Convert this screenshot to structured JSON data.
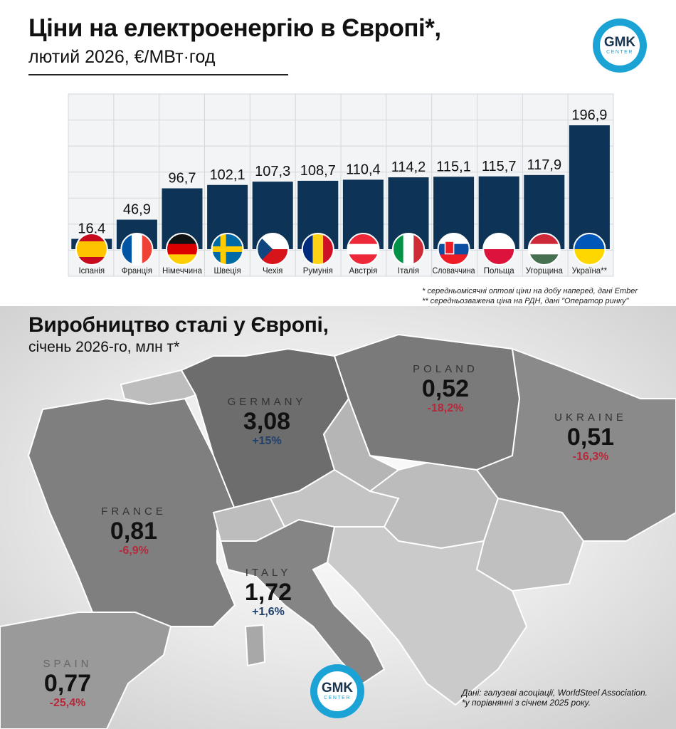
{
  "header": {
    "title": "Ціни на електроенергію в Європі*,",
    "subtitle": "лютий 2026, €/МВт·год"
  },
  "logo": {
    "main": "GMK",
    "sub": "CENTER"
  },
  "chart_data": {
    "type": "bar",
    "categories": [
      "Іспанія",
      "Франція",
      "Німеччина",
      "Швеція",
      "Чехія",
      "Румунія",
      "Австрія",
      "Італія",
      "Словаччина",
      "Польща",
      "Угорщина",
      "Україна**"
    ],
    "values": [
      16.4,
      46.9,
      96.7,
      102.1,
      107.3,
      108.7,
      110.4,
      114.2,
      115.1,
      115.7,
      117.9,
      196.9
    ],
    "value_labels": [
      "16,4",
      "46,9",
      "96,7",
      "102,1",
      "107,3",
      "108,7",
      "110,4",
      "114,2",
      "115,1",
      "115,7",
      "117,9",
      "196,9"
    ],
    "flags": [
      "spain-flag",
      "france-flag",
      "germany-flag",
      "sweden-flag",
      "czechia-flag",
      "romania-flag",
      "austria-flag",
      "italy-flag",
      "slovakia-flag",
      "poland-flag",
      "hungary-flag",
      "ukraine-flag"
    ],
    "bar_color": "#0d3356",
    "grid": true,
    "ylim": [
      0,
      200
    ]
  },
  "notes": {
    "note1": "* середньомісячні оптові ціни на добу наперед, дані Ember",
    "note2": "** середньозважена ціна на РДН, дані \"Оператор ринку\""
  },
  "section2": {
    "title": "Виробництво сталі у Європі,",
    "subtitle": "січень 2026-го, млн т*"
  },
  "steel": {
    "germany": {
      "name": "GERMANY",
      "value": "3,08",
      "change": "+15%"
    },
    "poland": {
      "name": "POLAND",
      "value": "0,52",
      "change": "-18,2%"
    },
    "ukraine": {
      "name": "UKRAINE",
      "value": "0,51",
      "change": "-16,3%"
    },
    "france": {
      "name": "FRANCE",
      "value": "0,81",
      "change": "-6,9%"
    },
    "italy": {
      "name": "ITALY",
      "value": "1,72",
      "change": "+1,6%"
    },
    "spain": {
      "name": "SPAIN",
      "value": "0,77",
      "change": "-25,4%"
    }
  },
  "source": {
    "line1": "Дані: галузеві асоціації, WorldSteel Association.",
    "line2": "*у порівнянні з січнем 2025 року."
  },
  "colors": {
    "negative": "#b8283a",
    "positive": "#20406a",
    "accent": "#1ba3d6"
  }
}
